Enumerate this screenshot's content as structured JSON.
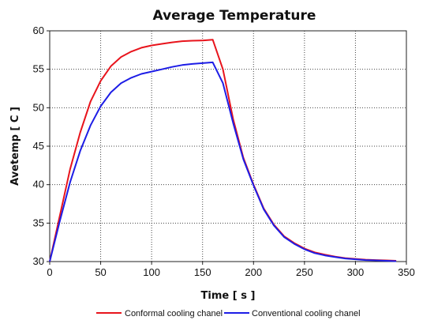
{
  "chart_data": {
    "type": "line",
    "title": "Average Temperature",
    "xlabel": "Time [ s ]",
    "ylabel": "Avetemp [ C ]",
    "xlim": [
      0,
      350
    ],
    "ylim": [
      30,
      60
    ],
    "xticks": [
      0,
      50,
      100,
      150,
      200,
      250,
      300,
      350
    ],
    "yticks": [
      30,
      35,
      40,
      45,
      50,
      55,
      60
    ],
    "grid": true,
    "legend_position": "bottom",
    "series": [
      {
        "name": "Conformal cooling chanel",
        "color": "#e8141c",
        "x": [
          0,
          10,
          20,
          30,
          40,
          50,
          60,
          70,
          80,
          90,
          100,
          110,
          120,
          130,
          140,
          150,
          160,
          170,
          180,
          190,
          200,
          210,
          220,
          230,
          240,
          250,
          260,
          270,
          280,
          290,
          300,
          310,
          320,
          330,
          340
        ],
        "y": [
          30,
          36,
          42,
          46.8,
          50.8,
          53.5,
          55.4,
          56.6,
          57.3,
          57.8,
          58.1,
          58.3,
          58.5,
          58.65,
          58.72,
          58.75,
          58.85,
          55,
          48.5,
          43.5,
          40,
          36.9,
          34.8,
          33.3,
          32.4,
          31.7,
          31.2,
          30.9,
          30.65,
          30.45,
          30.35,
          30.25,
          30.2,
          30.15,
          30.1
        ]
      },
      {
        "name": "Conventional cooling chanel",
        "color": "#1d1de6",
        "x": [
          0,
          10,
          20,
          30,
          40,
          50,
          60,
          70,
          80,
          90,
          100,
          110,
          120,
          130,
          140,
          150,
          160,
          170,
          180,
          190,
          200,
          210,
          220,
          230,
          240,
          250,
          260,
          270,
          280,
          290,
          300,
          310,
          320,
          330,
          340
        ],
        "y": [
          30,
          35.3,
          40.3,
          44.4,
          47.7,
          50.2,
          52,
          53.2,
          53.9,
          54.4,
          54.7,
          55,
          55.3,
          55.55,
          55.7,
          55.8,
          55.9,
          53.2,
          48,
          43.3,
          39.9,
          36.8,
          34.7,
          33.2,
          32.3,
          31.6,
          31.1,
          30.8,
          30.6,
          30.4,
          30.3,
          30.2,
          30.15,
          30.1,
          30.05
        ]
      }
    ]
  }
}
